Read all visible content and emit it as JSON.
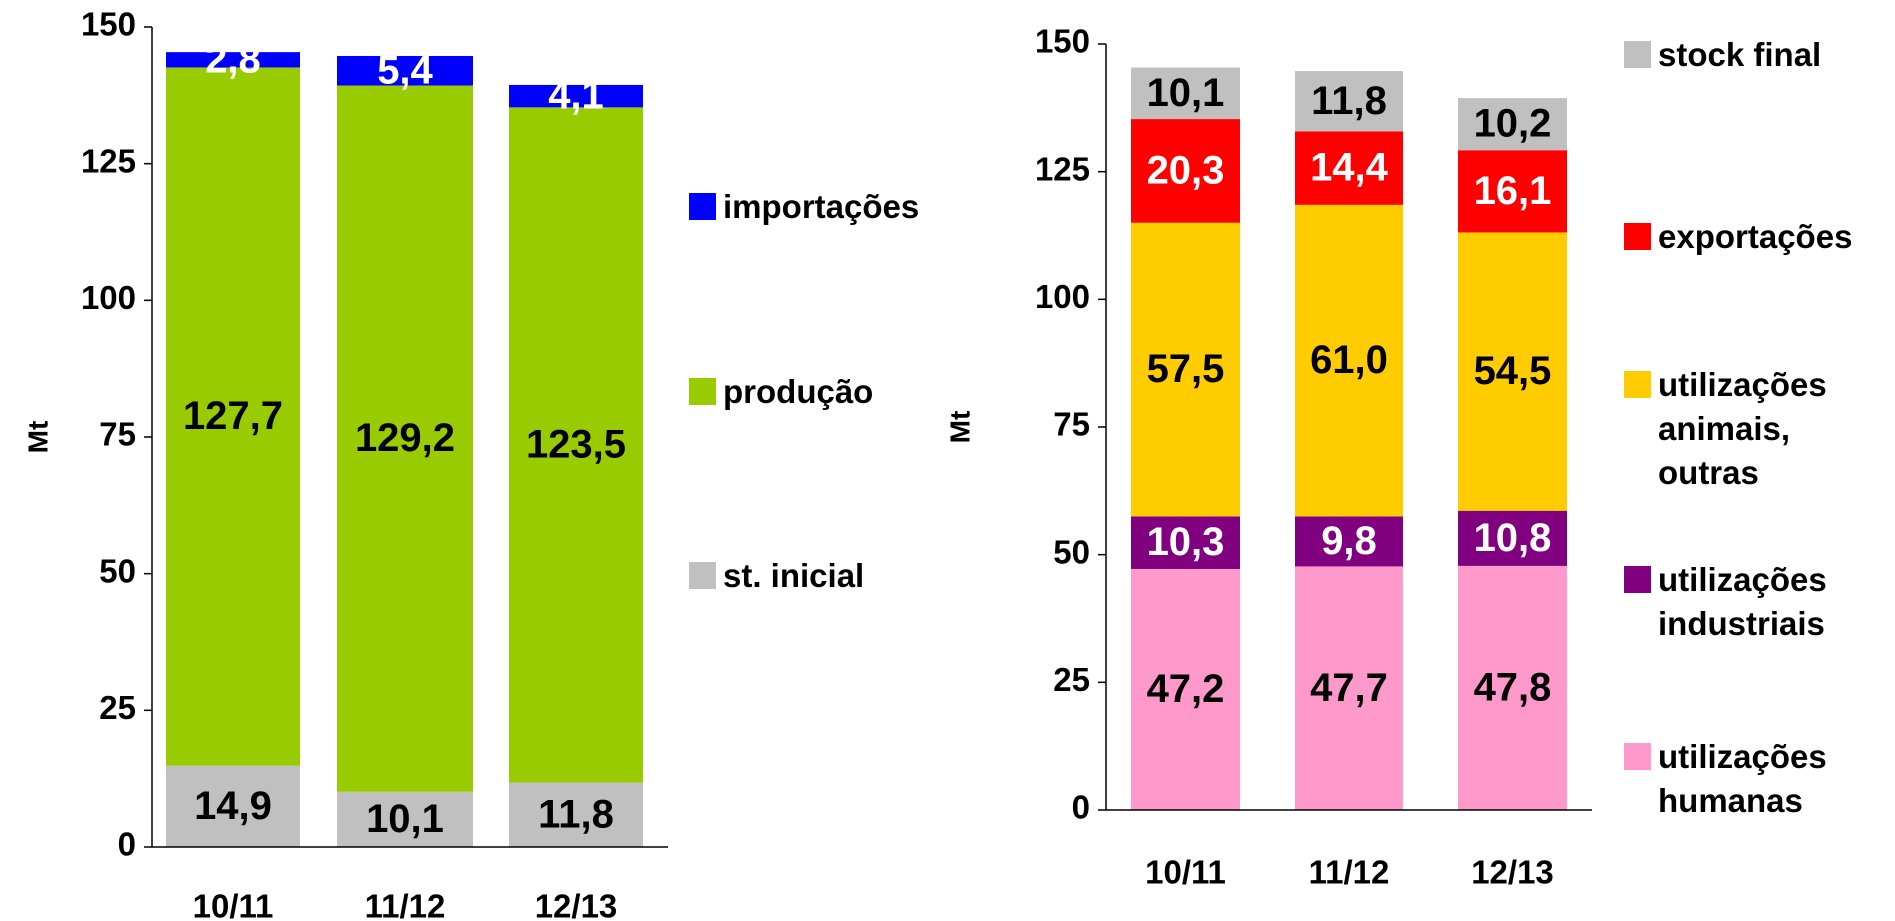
{
  "chart_data": [
    {
      "type": "bar",
      "stacked": true,
      "y_label": "Mt",
      "categories": [
        "10/11",
        "11/12",
        "12/13"
      ],
      "ylim": [
        0,
        150
      ],
      "yticks": [
        0,
        25,
        50,
        75,
        100,
        125,
        150
      ],
      "series": [
        {
          "name": "st. inicial",
          "color": "#c0c0c0",
          "label_color": "#000000",
          "values": [
            14.9,
            10.1,
            11.8
          ],
          "value_labels": [
            "14,9",
            "10,1",
            "11,8"
          ]
        },
        {
          "name": "produção",
          "color": "#99cc00",
          "label_color": "#000000",
          "values": [
            127.7,
            129.2,
            123.5
          ],
          "value_labels": [
            "127,7",
            "129,2",
            "123,5"
          ]
        },
        {
          "name": "importações",
          "color": "#0000ff",
          "label_color": "#ffffff",
          "values": [
            2.8,
            5.4,
            4.1
          ],
          "value_labels": [
            "2,8",
            "5,4",
            "4,1"
          ]
        }
      ]
    },
    {
      "type": "bar",
      "stacked": true,
      "y_label": "Mt",
      "categories": [
        "10/11",
        "11/12",
        "12/13"
      ],
      "ylim": [
        0,
        150
      ],
      "yticks": [
        0,
        25,
        50,
        75,
        100,
        125,
        150
      ],
      "series": [
        {
          "name": "utilizações humanas",
          "color": "#ff99cc",
          "label_color": "#000000",
          "values": [
            47.2,
            47.7,
            47.8
          ],
          "value_labels": [
            "47,2",
            "47,7",
            "47,8"
          ]
        },
        {
          "name": "utilizações industriais",
          "color": "#800080",
          "label_color": "#ffffff",
          "values": [
            10.3,
            9.8,
            10.8
          ],
          "value_labels": [
            "10,3",
            "9,8",
            "10,8"
          ]
        },
        {
          "name": "utilizações animais, outras",
          "color": "#ffcc00",
          "label_color": "#000000",
          "values": [
            57.5,
            61.0,
            54.5
          ],
          "value_labels": [
            "57,5",
            "61,0",
            "54,5"
          ]
        },
        {
          "name": "exportações",
          "color": "#ff0000",
          "label_color": "#ffffff",
          "values": [
            20.3,
            14.4,
            16.1
          ],
          "value_labels": [
            "20,3",
            "14,4",
            "16,1"
          ]
        },
        {
          "name": "stock final",
          "color": "#c0c0c0",
          "label_color": "#000000",
          "values": [
            10.1,
            11.8,
            10.2
          ],
          "value_labels": [
            "10,1",
            "11,8",
            "10,2"
          ]
        }
      ]
    }
  ]
}
